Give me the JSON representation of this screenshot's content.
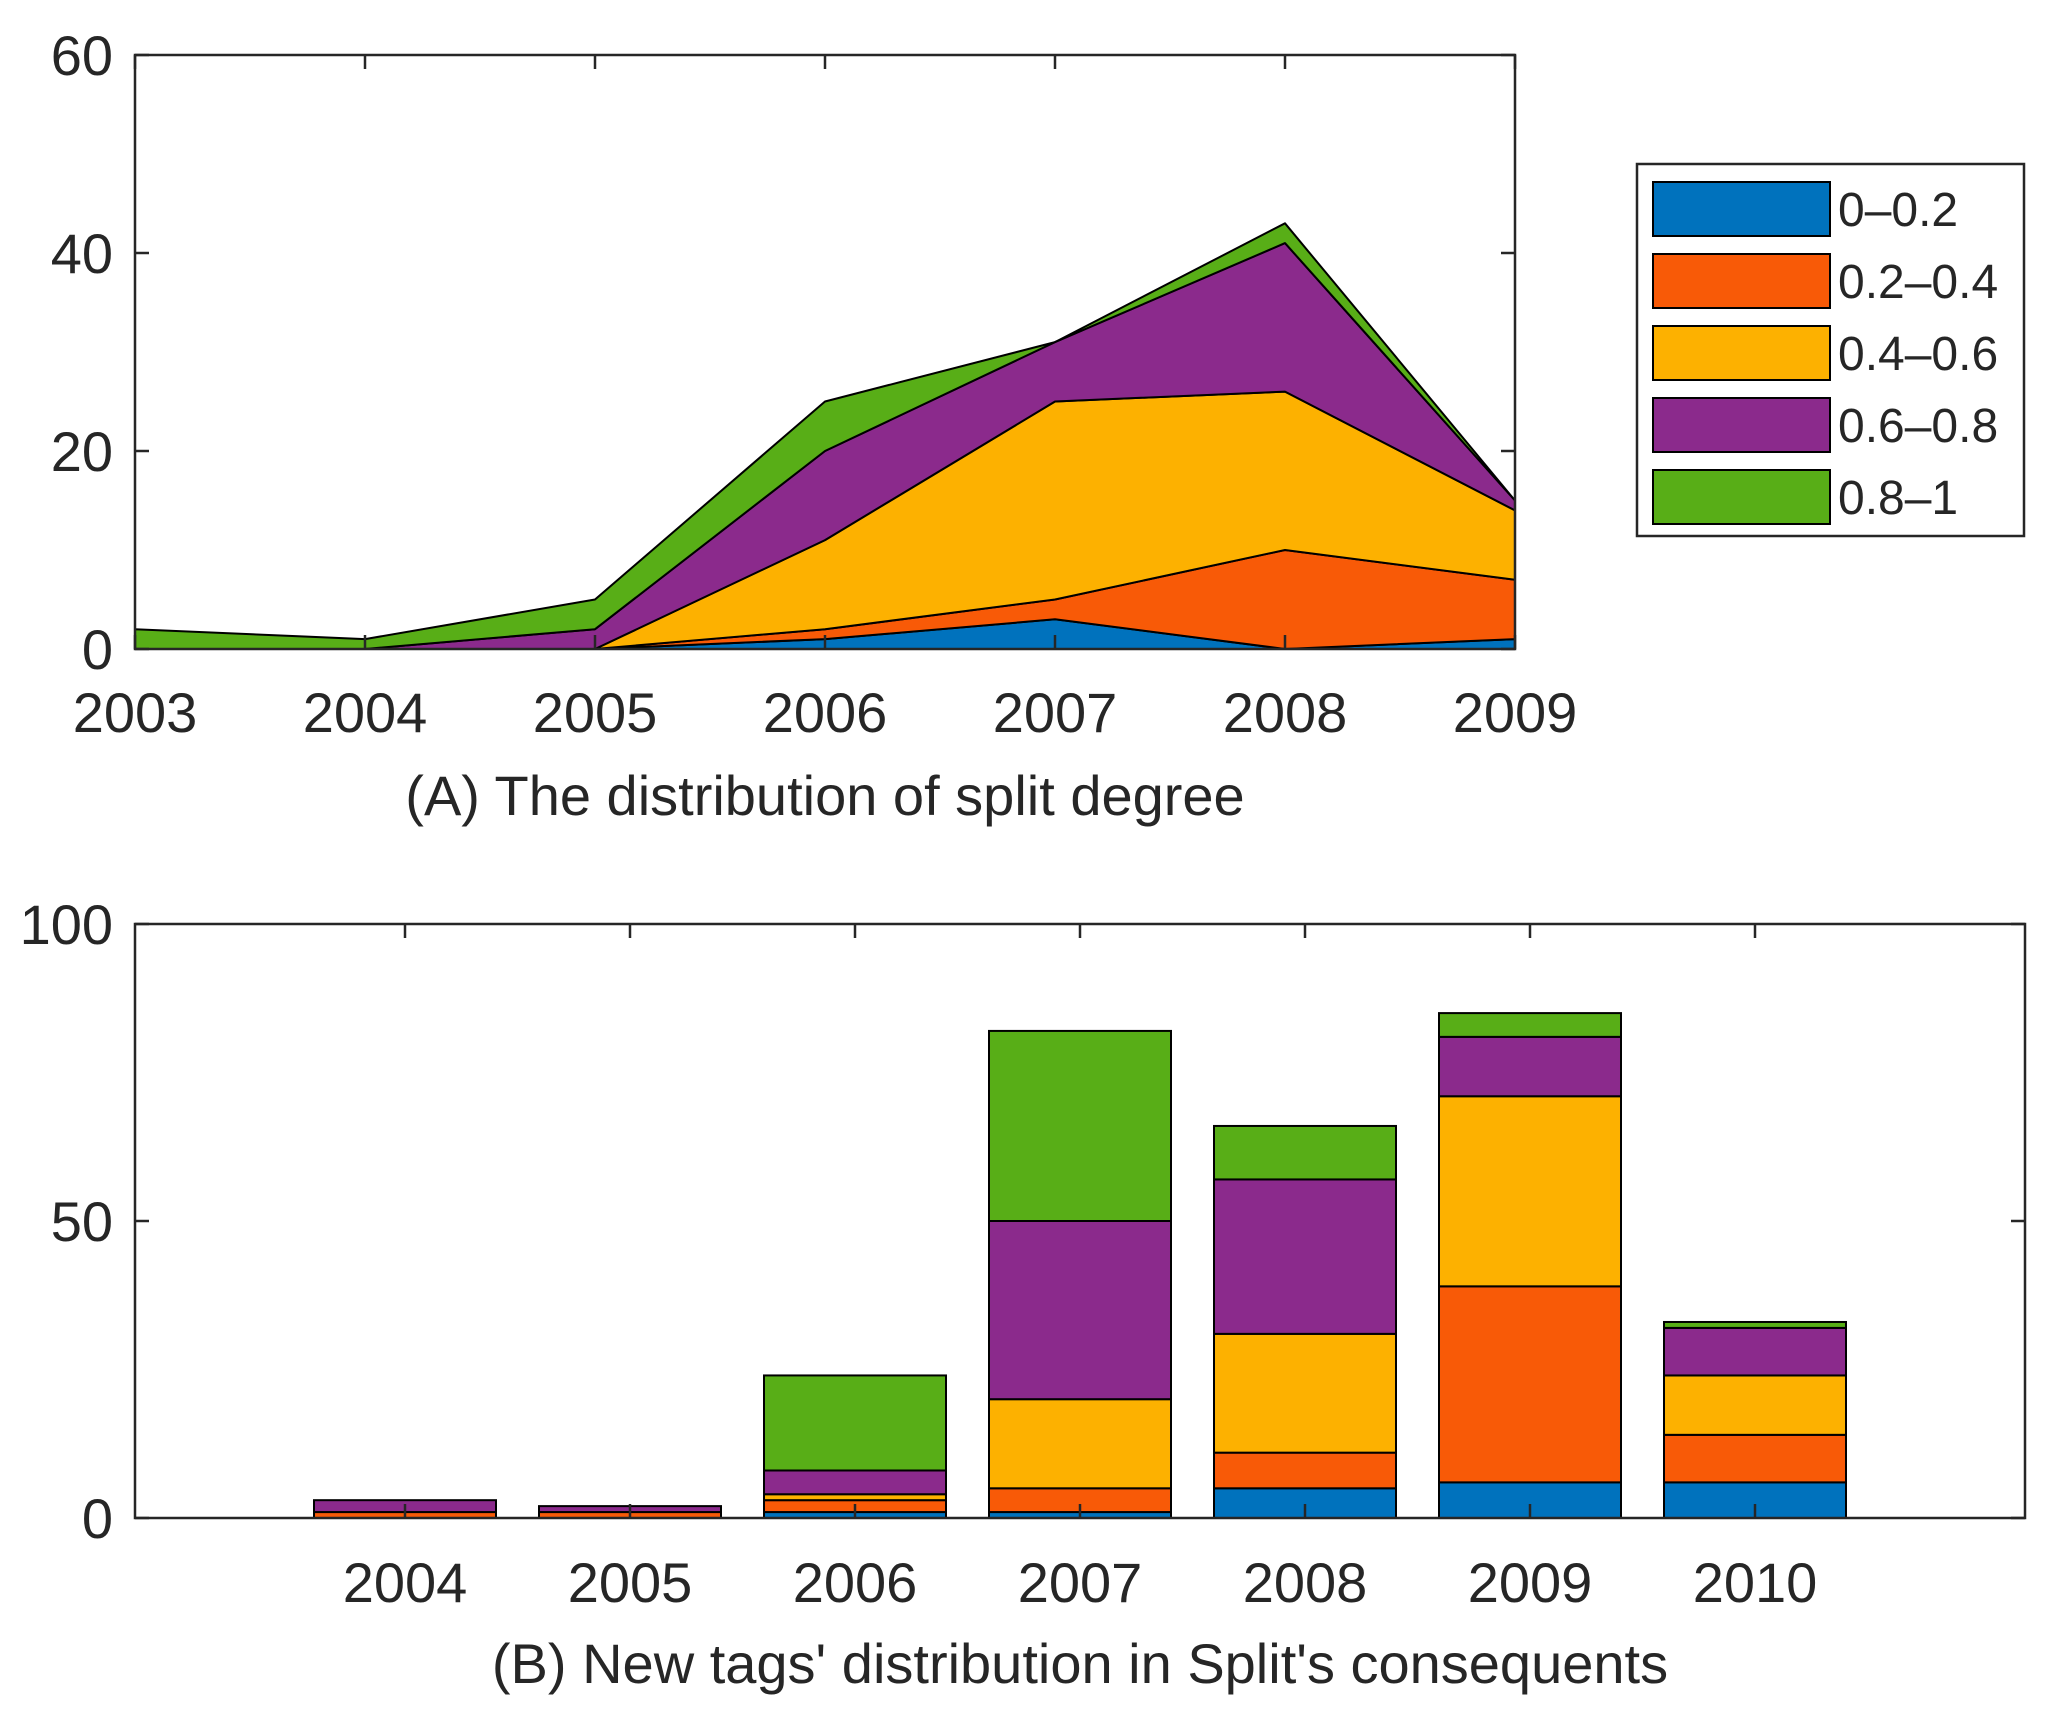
{
  "chart_data": [
    {
      "id": "A",
      "type": "area",
      "stacked": true,
      "title": "(A) The distribution of split degree",
      "x": [
        2003,
        2004,
        2005,
        2006,
        2007,
        2008,
        2009
      ],
      "x_tick_labels": [
        "2003",
        "2004",
        "2005",
        "2006",
        "2007",
        "2008",
        "2009"
      ],
      "xlim": [
        2003,
        2009
      ],
      "ylim": [
        0,
        60
      ],
      "y_ticks": [
        0,
        20,
        40,
        60
      ],
      "y_tick_labels": [
        "0",
        "20",
        "40",
        "60"
      ],
      "xlabel": "",
      "ylabel": "",
      "grid": false,
      "legend_position": "right",
      "series": [
        {
          "name": "0–0.2",
          "color": "#0072BD",
          "values": [
            0,
            0,
            0,
            1,
            3,
            0,
            1
          ]
        },
        {
          "name": "0.2–0.4",
          "color": "#F85A07",
          "values": [
            0,
            0,
            0,
            1,
            2,
            10,
            6
          ]
        },
        {
          "name": "0.4–0.6",
          "color": "#FDB100",
          "values": [
            0,
            0,
            0,
            9,
            20,
            16,
            7
          ]
        },
        {
          "name": "0.6–0.8",
          "color": "#8B2A8C",
          "values": [
            0,
            0,
            2,
            9,
            6,
            15,
            1
          ]
        },
        {
          "name": "0.8–1",
          "color": "#58AE17",
          "values": [
            2,
            1,
            3,
            5,
            0,
            2,
            0
          ]
        }
      ]
    },
    {
      "id": "B",
      "type": "bar",
      "stacked": true,
      "title": "(B) New tags' distribution in Split's consequents",
      "categories": [
        "2004",
        "2005",
        "2006",
        "2007",
        "2008",
        "2009",
        "2010"
      ],
      "xlim": [
        2002.8,
        2011.2
      ],
      "ylim": [
        0,
        100
      ],
      "y_ticks": [
        0,
        50,
        100
      ],
      "y_tick_labels": [
        "0",
        "50",
        "100"
      ],
      "xlabel": "",
      "ylabel": "",
      "grid": false,
      "series": [
        {
          "name": "0–0.2",
          "color": "#0072BD",
          "values": [
            0,
            0,
            1,
            1,
            5,
            6,
            6
          ]
        },
        {
          "name": "0.2–0.4",
          "color": "#F85A07",
          "values": [
            1,
            1,
            2,
            4,
            6,
            33,
            8
          ]
        },
        {
          "name": "0.4–0.6",
          "color": "#FDB100",
          "values": [
            0,
            0,
            1,
            15,
            20,
            32,
            10
          ]
        },
        {
          "name": "0.6–0.8",
          "color": "#8B2A8C",
          "values": [
            2,
            1,
            4,
            30,
            26,
            10,
            8
          ]
        },
        {
          "name": "0.8–1",
          "color": "#58AE17",
          "values": [
            0,
            0,
            16,
            32,
            9,
            4,
            1
          ]
        }
      ]
    }
  ]
}
